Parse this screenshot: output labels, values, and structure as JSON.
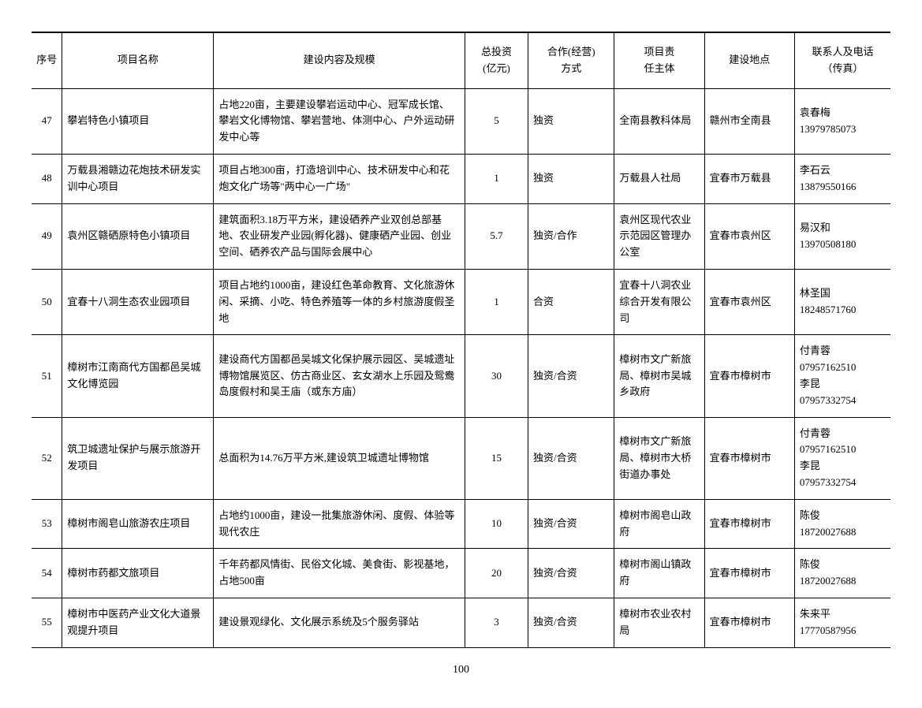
{
  "table": {
    "headers": {
      "seq": "序号",
      "name": "项目名称",
      "content": "建设内容及规模",
      "invest": "总投资\n(亿元)",
      "coop": "合作(经营)\n方式",
      "resp": "项目责\n任主体",
      "loc": "建设地点",
      "contact": "联系人及电话\n（传真）"
    },
    "rows": [
      {
        "seq": "47",
        "name": "攀岩特色小镇项目",
        "content": "占地220亩，主要建设攀岩运动中心、冠军成长馆、攀岩文化博物馆、攀岩营地、体测中心、户外运动研发中心等",
        "invest": "5",
        "coop": "独资",
        "resp": "全南县教科体局",
        "loc": "赣州市全南县",
        "contact": "袁春梅\n13979785073"
      },
      {
        "seq": "48",
        "name": "万载县湘赣边花炮技术研发实训中心项目",
        "content": "项目占地300亩，打造培训中心、技术研发中心和花炮文化广场等\"两中心一广场\"",
        "invest": "1",
        "coop": "独资",
        "resp": "万载县人社局",
        "loc": "宜春市万载县",
        "contact": "李石云\n13879550166"
      },
      {
        "seq": "49",
        "name": "袁州区赣硒原特色小镇项目",
        "content": "建筑面积3.18万平方米，建设硒养产业双创总部基地、农业研发产业园(孵化器)、健康硒产业园、创业空间、硒养农产品与国际会展中心",
        "invest": "5.7",
        "coop": "独资/合作",
        "resp": "袁州区现代农业示范园区管理办公室",
        "loc": "宜春市袁州区",
        "contact": "易汉和\n13970508180"
      },
      {
        "seq": "50",
        "name": "宜春十八洞生态农业园项目",
        "content": "项目占地约1000亩，建设红色革命教育、文化旅游休闲、采摘、小吃、特色养殖等一体的乡村旅游度假圣地",
        "invest": "1",
        "coop": "合资",
        "resp": "宜春十八洞农业综合开发有限公司",
        "loc": "宜春市袁州区",
        "contact": "林圣国\n18248571760"
      },
      {
        "seq": "51",
        "name": "樟树市江南商代方国都邑吴城文化博览园",
        "content": "建设商代方国都邑吴城文化保护展示园区、吴城遗址博物馆展览区、仿古商业区、玄女湖水上乐园及鸳鸯岛度假村和吴王庙（或东方庙）",
        "invest": "30",
        "coop": "独资/合资",
        "resp": "樟树市文广新旅局、樟树市吴城乡政府",
        "loc": "宜春市樟树市",
        "contact": "付青蓉\n07957162510\n李昆\n07957332754"
      },
      {
        "seq": "52",
        "name": "筑卫城遗址保护与展示旅游开发项目",
        "content": "总面积为14.76万平方米,建设筑卫城遗址博物馆",
        "invest": "15",
        "coop": "独资/合资",
        "resp": "樟树市文广新旅局、樟树市大桥街道办事处",
        "loc": "宜春市樟树市",
        "contact": "付青蓉\n07957162510\n李昆\n07957332754"
      },
      {
        "seq": "53",
        "name": "樟树市阁皂山旅游农庄项目",
        "content": "占地约1000亩，建设一批集旅游休闲、度假、体验等现代农庄",
        "invest": "10",
        "coop": "独资/合资",
        "resp": "樟树市阁皂山政府",
        "loc": "宜春市樟树市",
        "contact": "陈俊\n18720027688"
      },
      {
        "seq": "54",
        "name": "樟树市药都文旅项目",
        "content": "千年药都风情街、民俗文化城、美食街、影视基地，占地500亩",
        "invest": "20",
        "coop": "独资/合资",
        "resp": "樟树市阁山镇政府",
        "loc": "宜春市樟树市",
        "contact": "陈俊\n18720027688"
      },
      {
        "seq": "55",
        "name": "樟树市中医药产业文化大道景观提升项目",
        "content": "建设景观绿化、文化展示系统及5个服务驿站",
        "invest": "3",
        "coop": "独资/合资",
        "resp": "樟树市农业农村局",
        "loc": "宜春市樟树市",
        "contact": "朱来平\n17770587956"
      }
    ]
  },
  "page_number": "100",
  "style": {
    "font_family": "SimSun",
    "font_size_pt": 10,
    "text_color": "#000000",
    "background_color": "#ffffff",
    "border_color": "#000000",
    "header_border_top_width": 2,
    "cell_border_width": 1,
    "line_height": 1.6
  }
}
